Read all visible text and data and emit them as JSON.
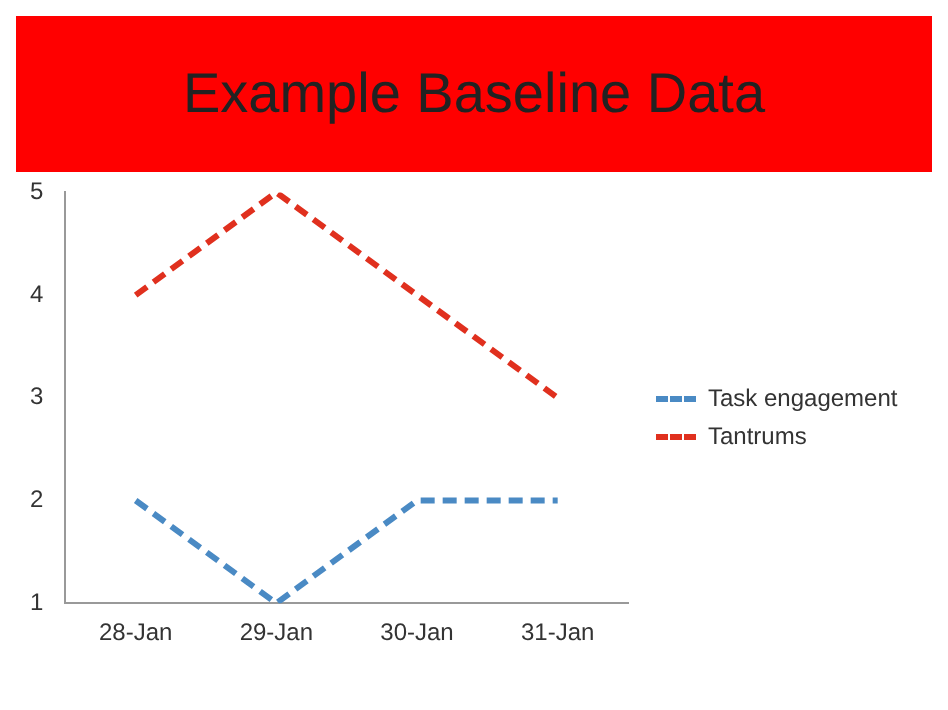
{
  "chart_data": {
    "type": "line",
    "title": "Example Baseline Data",
    "categories": [
      "28-Jan",
      "29-Jan",
      "30-Jan",
      "31-Jan"
    ],
    "series": [
      {
        "name": "Task engagement",
        "color": "#4a8ac4",
        "values": [
          2,
          1,
          2,
          2
        ]
      },
      {
        "name": "Tantrums",
        "color": "#e0301e",
        "values": [
          4,
          5,
          4,
          3
        ]
      }
    ],
    "ylim": [
      1,
      5
    ],
    "yticks": [
      1,
      2,
      3,
      4,
      5
    ],
    "grid": false,
    "legend": "right",
    "marker": "none",
    "line_style": "dashed"
  }
}
